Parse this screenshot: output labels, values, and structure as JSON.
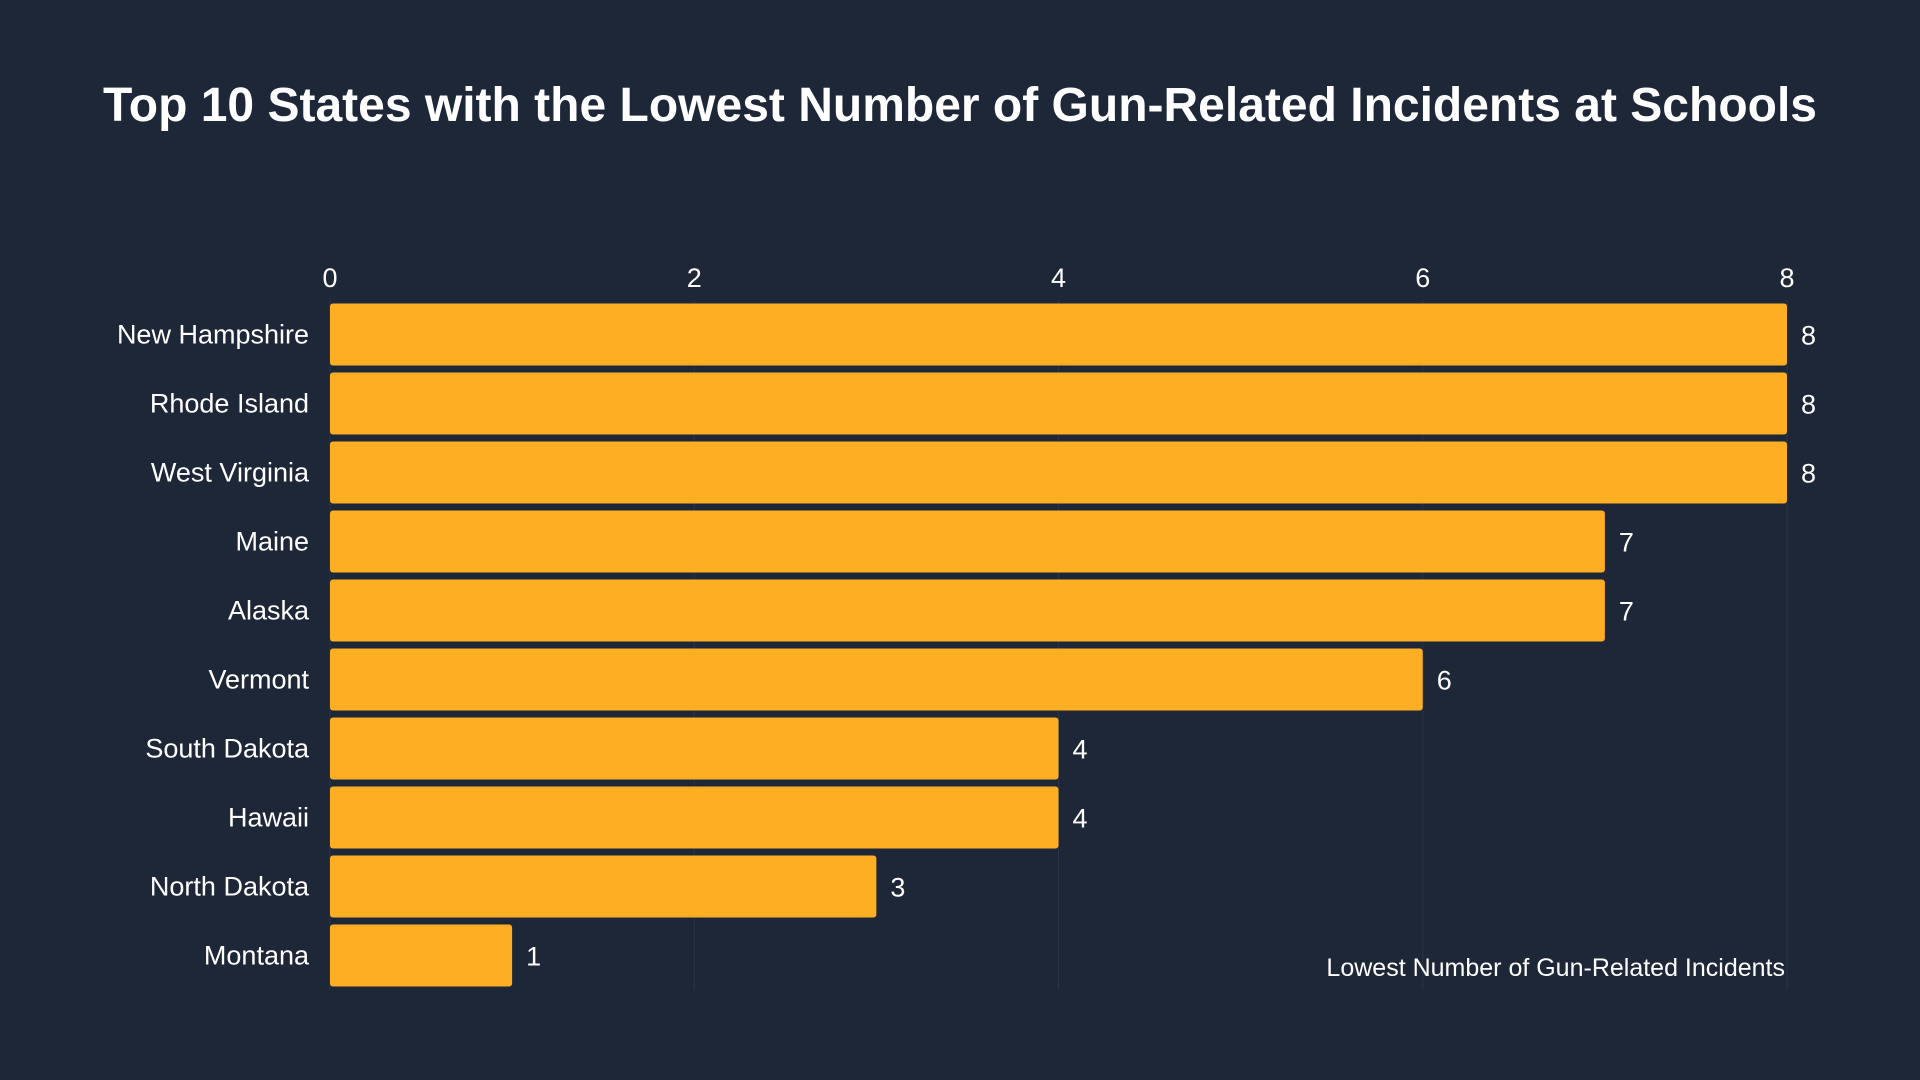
{
  "colors": {
    "background": "#1e2738",
    "bar": "#fdae23",
    "gridline": "#2a3446",
    "text": "#ffffff"
  },
  "chart_data": {
    "type": "bar",
    "orientation": "horizontal",
    "title": "Top 10 States with the Lowest Number of Gun-Related Incidents at Schools",
    "xlabel": "Lowest Number of Gun-Related Incidents",
    "ylabel": "",
    "categories": [
      "New Hampshire",
      "Rhode Island",
      "West Virginia",
      "Maine",
      "Alaska",
      "Vermont",
      "South Dakota",
      "Hawaii",
      "North Dakota",
      "Montana"
    ],
    "values": [
      8,
      8,
      8,
      7,
      7,
      6,
      4,
      4,
      3,
      1
    ],
    "xlim": [
      0,
      8
    ],
    "xticks": [
      0,
      2,
      4,
      6,
      8
    ],
    "x_axis_position": "top",
    "grid": true,
    "legend": "none"
  }
}
